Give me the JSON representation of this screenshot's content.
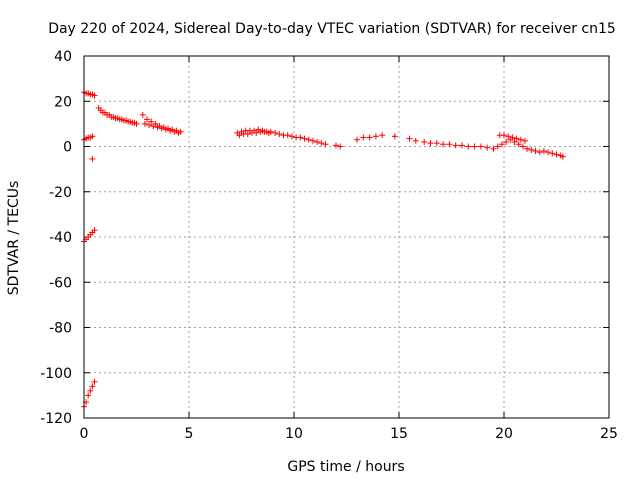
{
  "chart_data": {
    "type": "scatter",
    "title": "Day 220 of 2024, Sidereal Day-to-day VTEC variation (SDTVAR) for receiver cn15",
    "xlabel": "GPS time / hours",
    "ylabel": "SDTVAR / TECUs",
    "xlim": [
      0,
      25
    ],
    "ylim": [
      -120,
      40
    ],
    "xticks": [
      0,
      5,
      10,
      15,
      20,
      25
    ],
    "yticks": [
      -120,
      -100,
      -80,
      -60,
      -40,
      -20,
      0,
      20,
      40
    ],
    "xtick_labels": [
      "0",
      "5",
      "10",
      "15",
      "20",
      "25"
    ],
    "ytick_labels": [
      "-120",
      "-100",
      "-80",
      "-60",
      "-40",
      "-20",
      "0",
      "20",
      "40"
    ],
    "grid": true,
    "marker": "+",
    "color": "#ff0000",
    "series": [
      {
        "name": "SDTVAR",
        "x": [
          0.0,
          0.1,
          0.2,
          0.3,
          0.4,
          0.5,
          0.0,
          0.1,
          0.2,
          0.3,
          0.4,
          0.4,
          0.0,
          0.1,
          0.2,
          0.3,
          0.4,
          0.5,
          0.0,
          0.1,
          0.2,
          0.3,
          0.4,
          0.5,
          0.7,
          0.9,
          1.1,
          1.3,
          1.5,
          1.7,
          1.9,
          2.1,
          2.3,
          2.5,
          0.8,
          1.0,
          1.2,
          1.4,
          1.6,
          1.8,
          2.0,
          2.2,
          2.4,
          2.8,
          3.0,
          3.2,
          3.4,
          3.6,
          3.8,
          4.0,
          4.2,
          4.4,
          4.6,
          2.9,
          3.1,
          3.3,
          3.5,
          3.7,
          3.9,
          4.1,
          4.3,
          4.5,
          7.3,
          7.5,
          7.7,
          7.9,
          8.1,
          8.3,
          8.5,
          8.7,
          8.9,
          9.1,
          7.4,
          7.6,
          7.8,
          8.0,
          8.2,
          8.4,
          8.6,
          8.8,
          9.3,
          9.5,
          9.7,
          9.9,
          10.1,
          10.3,
          10.5,
          10.7,
          10.9,
          11.1,
          11.3,
          11.5,
          12.0,
          12.2,
          13.0,
          13.3,
          13.6,
          13.9,
          14.2,
          14.8,
          15.5,
          15.8,
          16.2,
          16.5,
          16.8,
          17.1,
          17.4,
          17.7,
          18.0,
          18.3,
          18.6,
          18.9,
          19.2,
          19.5,
          19.7,
          19.9,
          20.1,
          20.3,
          20.5,
          20.7,
          20.9,
          21.1,
          21.3,
          21.5,
          21.7,
          19.8,
          20.0,
          20.2,
          20.4,
          20.6,
          20.8,
          21.0,
          21.9,
          22.1,
          22.3,
          22.5,
          22.7,
          22.8
        ],
        "y": [
          24,
          23.5,
          23.5,
          23,
          23,
          22.5,
          3,
          3.5,
          4,
          4,
          4.5,
          -5.5,
          -42,
          -41,
          -40,
          -39,
          -38,
          -37,
          -115,
          -113,
          -110,
          -108,
          -106,
          -104,
          17,
          15,
          14,
          13,
          12.5,
          12,
          11.5,
          11,
          10.5,
          10,
          16,
          15,
          14,
          13,
          12.5,
          12,
          11.5,
          11,
          10.5,
          14,
          12,
          11,
          10,
          9,
          8.5,
          8,
          7.5,
          7,
          6.5,
          10,
          9.5,
          9,
          8.5,
          8,
          7.5,
          7,
          6.5,
          6,
          6,
          6.5,
          7,
          7,
          7,
          7.5,
          7,
          6.5,
          6.5,
          6,
          5,
          5.5,
          5.5,
          6,
          6,
          6.5,
          6.5,
          6,
          5.5,
          5,
          5,
          4.5,
          4,
          4,
          3.5,
          3,
          2.5,
          2,
          1.5,
          1,
          0.5,
          0,
          3,
          4,
          4,
          4.5,
          5,
          4.5,
          3.5,
          2.5,
          2,
          1.5,
          1.5,
          1,
          1,
          0.5,
          0.5,
          0,
          0,
          0,
          -0.5,
          -1,
          0,
          1,
          2,
          3,
          2,
          1,
          0,
          -1,
          -1.5,
          -2,
          -2.5,
          5,
          5,
          4.5,
          4,
          3.5,
          3,
          2.5,
          -2,
          -2.5,
          -3,
          -3.5,
          -4,
          -4.5
        ]
      }
    ]
  }
}
